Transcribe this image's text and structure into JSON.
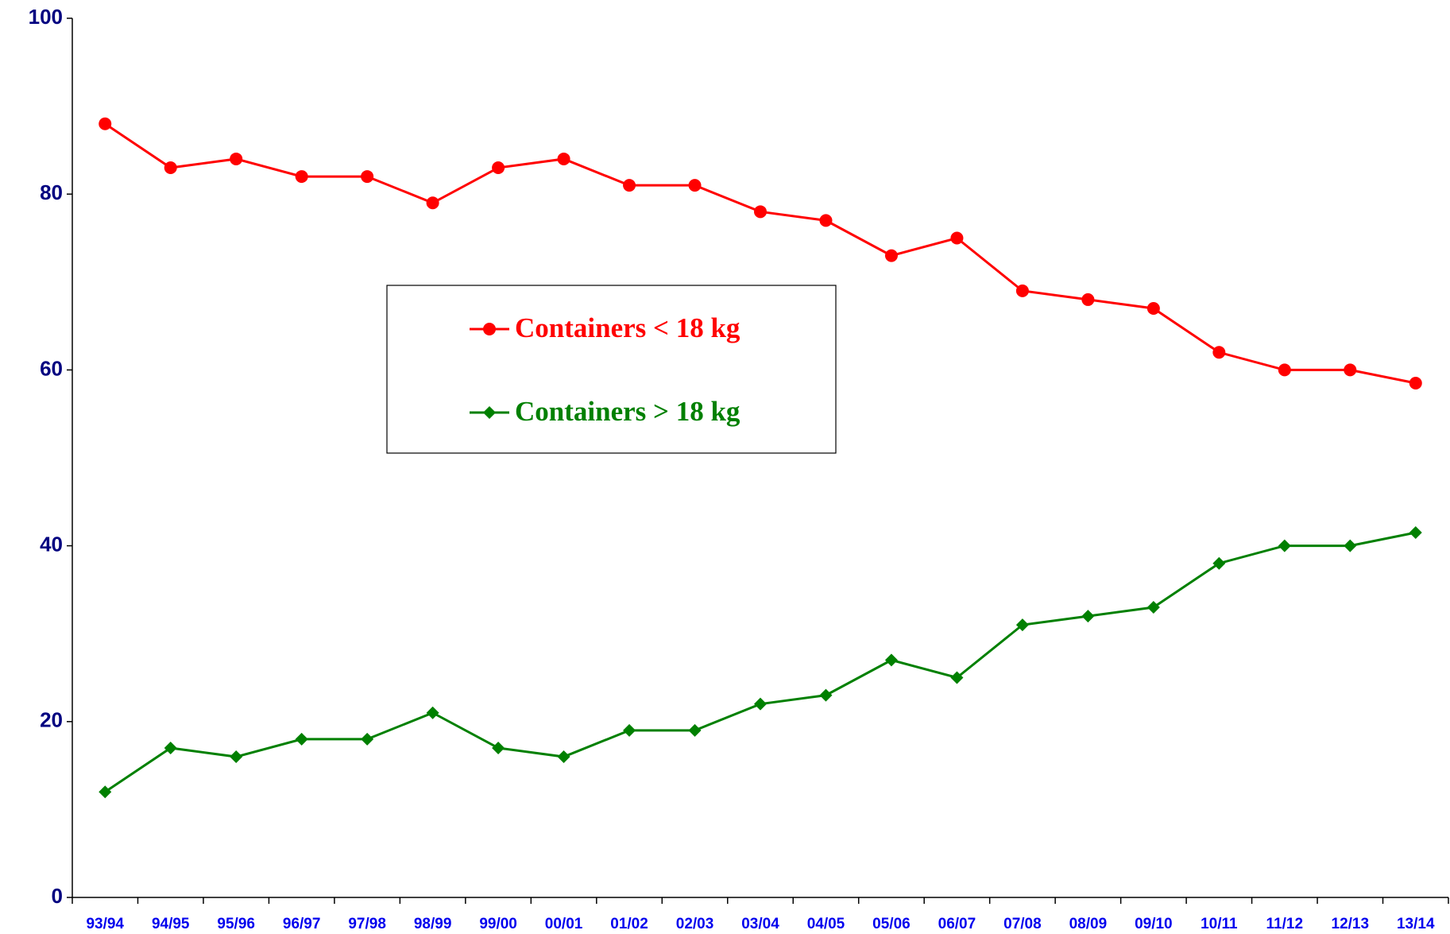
{
  "chart_data": {
    "type": "line",
    "categories": [
      "93/94",
      "94/95",
      "95/96",
      "96/97",
      "97/98",
      "98/99",
      "99/00",
      "00/01",
      "01/02",
      "02/03",
      "03/04",
      "04/05",
      "05/06",
      "06/07",
      "07/08",
      "08/09",
      "09/10",
      "10/11",
      "11/12",
      "12/13",
      "13/14"
    ],
    "series": [
      {
        "name": "Containers < 18 kg",
        "color": "#ff0000",
        "marker": "circle",
        "values": [
          88,
          83,
          84,
          82,
          82,
          79,
          83,
          84,
          81,
          81,
          78,
          77,
          73,
          75,
          69,
          68,
          67,
          62,
          60,
          60,
          58.5
        ]
      },
      {
        "name": "Containers > 18 kg",
        "color": "#008000",
        "marker": "diamond",
        "values": [
          12,
          17,
          16,
          18,
          18,
          21,
          17,
          16,
          19,
          19,
          22,
          23,
          27,
          25,
          31,
          32,
          33,
          38,
          40,
          40,
          41.5
        ]
      }
    ],
    "ylim": [
      0,
      100
    ],
    "yticks": [
      0,
      20,
      40,
      60,
      80,
      100
    ],
    "grid": false,
    "legend": true
  }
}
